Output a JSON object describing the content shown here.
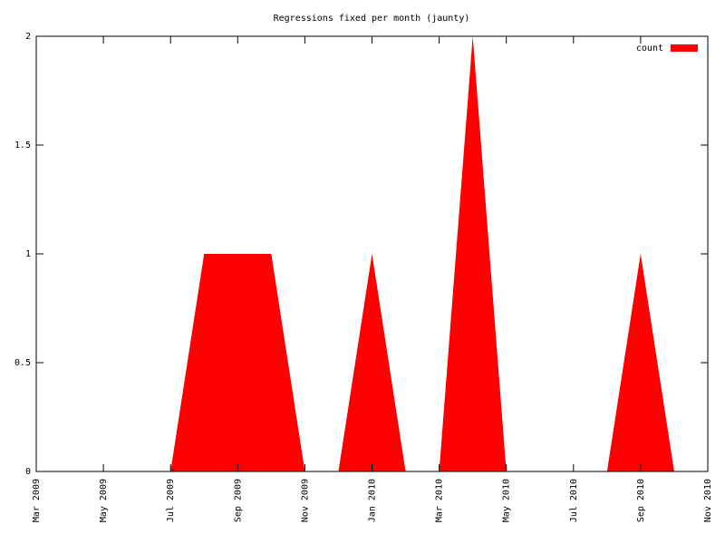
{
  "chart_data": {
    "type": "area",
    "title": "Regressions fixed per month (jaunty)",
    "x": [
      "2009-07",
      "2009-08",
      "2009-09",
      "2009-10",
      "2009-11",
      "2009-12",
      "2010-01",
      "2010-02",
      "2010-03",
      "2010-04",
      "2010-05",
      "2010-06",
      "2010-07",
      "2010-08",
      "2010-09",
      "2010-10"
    ],
    "series": [
      {
        "name": "count",
        "color": "#ff0000",
        "values": [
          0,
          1,
          1,
          1,
          0,
          0,
          1,
          0,
          0,
          2,
          0,
          0,
          0,
          0,
          1,
          0
        ]
      }
    ],
    "xlim": [
      "2009-03",
      "2010-11"
    ],
    "xticks": [
      {
        "value": "2009-03",
        "label": "Mar 2009"
      },
      {
        "value": "2009-05",
        "label": "May 2009"
      },
      {
        "value": "2009-07",
        "label": "Jul 2009"
      },
      {
        "value": "2009-09",
        "label": "Sep 2009"
      },
      {
        "value": "2009-11",
        "label": "Nov 2009"
      },
      {
        "value": "2010-01",
        "label": "Jan 2010"
      },
      {
        "value": "2010-03",
        "label": "Mar 2010"
      },
      {
        "value": "2010-05",
        "label": "May 2010"
      },
      {
        "value": "2010-07",
        "label": "Jul 2010"
      },
      {
        "value": "2010-09",
        "label": "Sep 2010"
      },
      {
        "value": "2010-11",
        "label": "Nov 2010"
      }
    ],
    "ylim": [
      0,
      2
    ],
    "yticks": [
      0,
      0.5,
      1,
      1.5,
      2
    ],
    "legend": "top-right"
  }
}
